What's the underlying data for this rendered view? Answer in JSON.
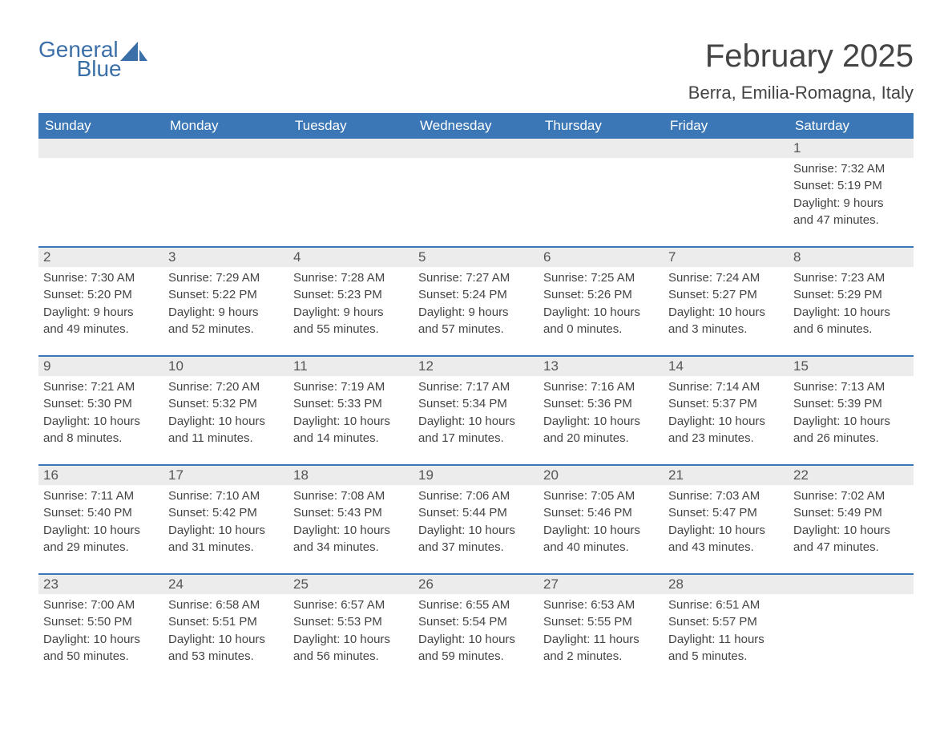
{
  "colors": {
    "header_bg": "#3b77b6",
    "header_text": "#ffffff",
    "daynum_bg": "#ececec",
    "daynum_text": "#555555",
    "body_text": "#444444",
    "logo_color": "#3b6fa8",
    "row_border": "#3b77b6",
    "page_bg": "#ffffff"
  },
  "typography": {
    "month_title_fontsize": 40,
    "location_fontsize": 22,
    "weekday_fontsize": 17,
    "daynum_fontsize": 17,
    "body_fontsize": 15,
    "logo_fontsize": 28
  },
  "logo": {
    "text1": "General",
    "text2": "Blue",
    "icon_name": "sail-icon"
  },
  "header": {
    "month_title": "February 2025",
    "location": "Berra, Emilia-Romagna, Italy"
  },
  "weekdays": [
    "Sunday",
    "Monday",
    "Tuesday",
    "Wednesday",
    "Thursday",
    "Friday",
    "Saturday"
  ],
  "labels": {
    "sunrise": "Sunrise: ",
    "sunset": "Sunset: ",
    "daylight": "Daylight: "
  },
  "weeks": [
    [
      {
        "blank": true
      },
      {
        "blank": true
      },
      {
        "blank": true
      },
      {
        "blank": true
      },
      {
        "blank": true
      },
      {
        "blank": true
      },
      {
        "day": "1",
        "sunrise": "7:32 AM",
        "sunset": "5:19 PM",
        "daylight1": "9 hours",
        "daylight2": "and 47 minutes."
      }
    ],
    [
      {
        "day": "2",
        "sunrise": "7:30 AM",
        "sunset": "5:20 PM",
        "daylight1": "9 hours",
        "daylight2": "and 49 minutes."
      },
      {
        "day": "3",
        "sunrise": "7:29 AM",
        "sunset": "5:22 PM",
        "daylight1": "9 hours",
        "daylight2": "and 52 minutes."
      },
      {
        "day": "4",
        "sunrise": "7:28 AM",
        "sunset": "5:23 PM",
        "daylight1": "9 hours",
        "daylight2": "and 55 minutes."
      },
      {
        "day": "5",
        "sunrise": "7:27 AM",
        "sunset": "5:24 PM",
        "daylight1": "9 hours",
        "daylight2": "and 57 minutes."
      },
      {
        "day": "6",
        "sunrise": "7:25 AM",
        "sunset": "5:26 PM",
        "daylight1": "10 hours",
        "daylight2": "and 0 minutes."
      },
      {
        "day": "7",
        "sunrise": "7:24 AM",
        "sunset": "5:27 PM",
        "daylight1": "10 hours",
        "daylight2": "and 3 minutes."
      },
      {
        "day": "8",
        "sunrise": "7:23 AM",
        "sunset": "5:29 PM",
        "daylight1": "10 hours",
        "daylight2": "and 6 minutes."
      }
    ],
    [
      {
        "day": "9",
        "sunrise": "7:21 AM",
        "sunset": "5:30 PM",
        "daylight1": "10 hours",
        "daylight2": "and 8 minutes."
      },
      {
        "day": "10",
        "sunrise": "7:20 AM",
        "sunset": "5:32 PM",
        "daylight1": "10 hours",
        "daylight2": "and 11 minutes."
      },
      {
        "day": "11",
        "sunrise": "7:19 AM",
        "sunset": "5:33 PM",
        "daylight1": "10 hours",
        "daylight2": "and 14 minutes."
      },
      {
        "day": "12",
        "sunrise": "7:17 AM",
        "sunset": "5:34 PM",
        "daylight1": "10 hours",
        "daylight2": "and 17 minutes."
      },
      {
        "day": "13",
        "sunrise": "7:16 AM",
        "sunset": "5:36 PM",
        "daylight1": "10 hours",
        "daylight2": "and 20 minutes."
      },
      {
        "day": "14",
        "sunrise": "7:14 AM",
        "sunset": "5:37 PM",
        "daylight1": "10 hours",
        "daylight2": "and 23 minutes."
      },
      {
        "day": "15",
        "sunrise": "7:13 AM",
        "sunset": "5:39 PM",
        "daylight1": "10 hours",
        "daylight2": "and 26 minutes."
      }
    ],
    [
      {
        "day": "16",
        "sunrise": "7:11 AM",
        "sunset": "5:40 PM",
        "daylight1": "10 hours",
        "daylight2": "and 29 minutes."
      },
      {
        "day": "17",
        "sunrise": "7:10 AM",
        "sunset": "5:42 PM",
        "daylight1": "10 hours",
        "daylight2": "and 31 minutes."
      },
      {
        "day": "18",
        "sunrise": "7:08 AM",
        "sunset": "5:43 PM",
        "daylight1": "10 hours",
        "daylight2": "and 34 minutes."
      },
      {
        "day": "19",
        "sunrise": "7:06 AM",
        "sunset": "5:44 PM",
        "daylight1": "10 hours",
        "daylight2": "and 37 minutes."
      },
      {
        "day": "20",
        "sunrise": "7:05 AM",
        "sunset": "5:46 PM",
        "daylight1": "10 hours",
        "daylight2": "and 40 minutes."
      },
      {
        "day": "21",
        "sunrise": "7:03 AM",
        "sunset": "5:47 PM",
        "daylight1": "10 hours",
        "daylight2": "and 43 minutes."
      },
      {
        "day": "22",
        "sunrise": "7:02 AM",
        "sunset": "5:49 PM",
        "daylight1": "10 hours",
        "daylight2": "and 47 minutes."
      }
    ],
    [
      {
        "day": "23",
        "sunrise": "7:00 AM",
        "sunset": "5:50 PM",
        "daylight1": "10 hours",
        "daylight2": "and 50 minutes."
      },
      {
        "day": "24",
        "sunrise": "6:58 AM",
        "sunset": "5:51 PM",
        "daylight1": "10 hours",
        "daylight2": "and 53 minutes."
      },
      {
        "day": "25",
        "sunrise": "6:57 AM",
        "sunset": "5:53 PM",
        "daylight1": "10 hours",
        "daylight2": "and 56 minutes."
      },
      {
        "day": "26",
        "sunrise": "6:55 AM",
        "sunset": "5:54 PM",
        "daylight1": "10 hours",
        "daylight2": "and 59 minutes."
      },
      {
        "day": "27",
        "sunrise": "6:53 AM",
        "sunset": "5:55 PM",
        "daylight1": "11 hours",
        "daylight2": "and 2 minutes."
      },
      {
        "day": "28",
        "sunrise": "6:51 AM",
        "sunset": "5:57 PM",
        "daylight1": "11 hours",
        "daylight2": "and 5 minutes."
      },
      {
        "blank": true
      }
    ]
  ]
}
